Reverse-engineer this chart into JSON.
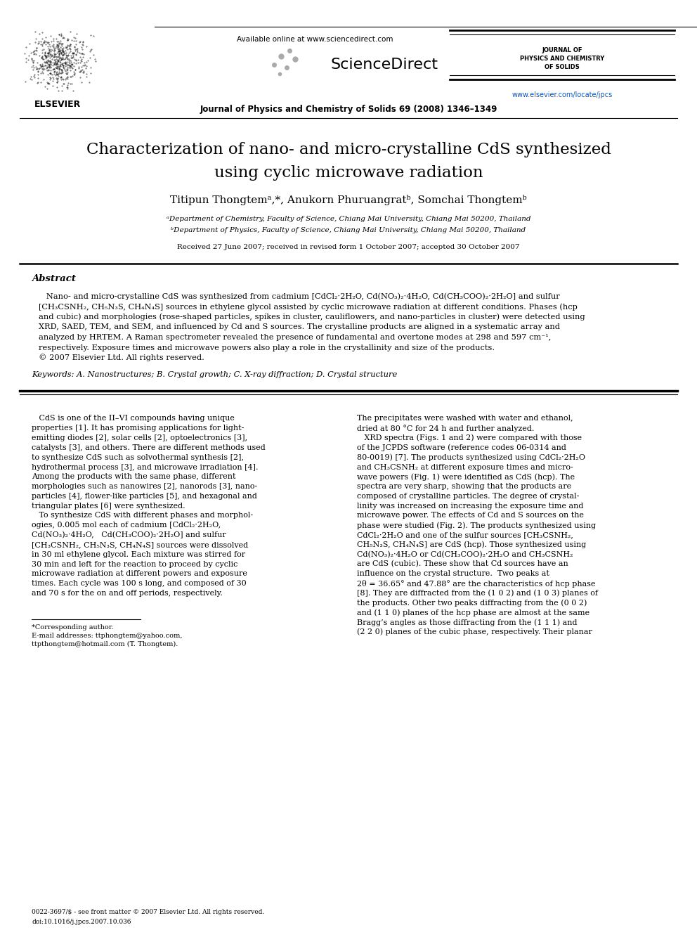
{
  "bg_color": "#ffffff",
  "title_line1": "Characterization of nano- and micro-crystalline CdS synthesized",
  "title_line2": "using cyclic microwave radiation",
  "authors": "Titipun Thongtemᵃ,*, Anukorn Phuruangratᵇ, Somchai Thongtemᵇ",
  "affil_a": "ᵃDepartment of Chemistry, Faculty of Science, Chiang Mai University, Chiang Mai 50200, Thailand",
  "affil_b": "ᵇDepartment of Physics, Faculty of Science, Chiang Mai University, Chiang Mai 50200, Thailand",
  "received": "Received 27 June 2007; received in revised form 1 October 2007; accepted 30 October 2007",
  "abstract_label": "Abstract",
  "abstract_text_lines": [
    "   Nano- and micro-crystalline CdS was synthesized from cadmium [CdCl₂·2H₂O, Cd(NO₃)₂·4H₂O, Cd(CH₃COO)₂·2H₂O] and sulfur",
    "[CH₃CSNH₂, CH₅N₃S, CH₄N₄S] sources in ethylene glycol assisted by cyclic microwave radiation at different conditions. Phases (hcp",
    "and cubic) and morphologies (rose-shaped particles, spikes in cluster, cauliflowers, and nano-particles in cluster) were detected using",
    "XRD, SAED, TEM, and SEM, and influenced by Cd and S sources. The crystalline products are aligned in a systematic array and",
    "analyzed by HRTEM. A Raman spectrometer revealed the presence of fundamental and overtone modes at 298 and 597 cm⁻¹,",
    "respectively. Exposure times and microwave powers also play a role in the crystallinity and size of the products.",
    "© 2007 Elsevier Ltd. All rights reserved."
  ],
  "keywords_text": "Keywords: A. Nanostructures; B. Crystal growth; C. X-ray diffraction; D. Crystal structure",
  "journal_name": "Journal of Physics and Chemistry of Solids 69 (2008) 1346–1349",
  "available_online": "Available online at www.sciencedirect.com",
  "sciencedirect_text": "ScienceDirect",
  "journal_right_line1": "JOURNAL OF",
  "journal_right_line2": "PHYSICS AND CHEMISTRY",
  "journal_right_line3": "OF SOLIDS",
  "url_text": "www.elsevier.com/locate/jpcs",
  "elsevier_label": "ELSEVIER",
  "body_col1_lines": [
    "   CdS is one of the II–VI compounds having unique",
    "properties [1]. It has promising applications for light-",
    "emitting diodes [2], solar cells [2], optoelectronics [3],",
    "catalysts [3], and others. There are different methods used",
    "to synthesize CdS such as solvothermal synthesis [2],",
    "hydrothermal process [3], and microwave irradiation [4].",
    "Among the products with the same phase, different",
    "morphologies such as nanowires [2], nanorods [3], nano-",
    "particles [4], flower-like particles [5], and hexagonal and",
    "triangular plates [6] were synthesized.",
    "   To synthesize CdS with different phases and morphol-",
    "ogies, 0.005 mol each of cadmium [CdCl₂·2H₂O,",
    "Cd(NO₃)₂·4H₂O,   Cd(CH₃COO)₂·2H₂O] and sulfur",
    "[CH₃CSNH₂, CH₅N₃S, CH₄N₄S] sources were dissolved",
    "in 30 ml ethylene glycol. Each mixture was stirred for",
    "30 min and left for the reaction to proceed by cyclic",
    "microwave radiation at different powers and exposure",
    "times. Each cycle was 100 s long, and composed of 30",
    "and 70 s for the on and off periods, respectively."
  ],
  "body_col2_lines": [
    "The precipitates were washed with water and ethanol,",
    "dried at 80 °C for 24 h and further analyzed.",
    "   XRD spectra (Figs. 1 and 2) were compared with those",
    "of the JCPDS software (reference codes 06-0314 and",
    "80-0019) [7]. The products synthesized using CdCl₂·2H₂O",
    "and CH₃CSNH₂ at different exposure times and micro-",
    "wave powers (Fig. 1) were identified as CdS (hcp). The",
    "spectra are very sharp, showing that the products are",
    "composed of crystalline particles. The degree of crystal-",
    "linity was increased on increasing the exposure time and",
    "microwave power. The effects of Cd and S sources on the",
    "phase were studied (Fig. 2). The products synthesized using",
    "CdCl₂·2H₂O and one of the sulfur sources [CH₃CSNH₂,",
    "CH₅N₃S, CH₄N₄S] are CdS (hcp). Those synthesized using",
    "Cd(NO₃)₂·4H₂O or Cd(CH₃COO)₂·2H₂O and CH₃CSNH₂",
    "are CdS (cubic). These show that Cd sources have an",
    "influence on the crystal structure.  Two peaks at",
    "2θ = 36.65° and 47.88° are the characteristics of hcp phase",
    "[8]. They are diffracted from the (1 0 2) and (1 0 3) planes of",
    "the products. Other two peaks diffracting from the (0 0 2)",
    "and (1 1 0) planes of the hcp phase are almost at the same",
    "Bragg’s angles as those diffracting from the (1 1 1) and",
    "(2 2 0) planes of the cubic phase, respectively. Their planar"
  ],
  "footnote_line1": "*Corresponding author.",
  "footnote_line2": "E-mail addresses: ttphongtem@yahoo.com,",
  "footnote_line3": "ttpthongtem@hotmail.com (T. Thongtem).",
  "bottom_line1": "0022-3697/$ - see front matter © 2007 Elsevier Ltd. All rights reserved.",
  "bottom_line2": "doi:10.1016/j.jpcs.2007.10.036"
}
